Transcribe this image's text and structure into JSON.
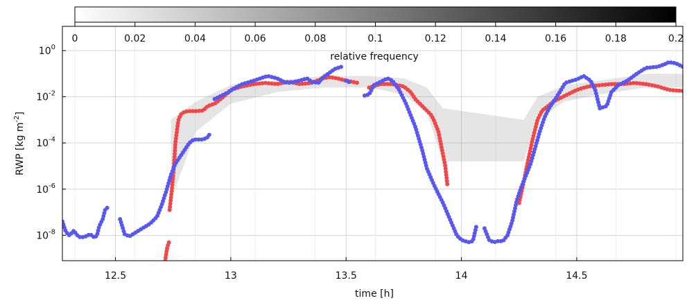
{
  "chart_data": {
    "type": "scatter",
    "xlabel": "time [h]",
    "ylabel": "RWP [kg m",
    "ylabel_sup": "-2",
    "ylabel_close": "]",
    "xlim": [
      12.27,
      14.96
    ],
    "ylim_log10": [
      -9.1,
      1.05
    ],
    "y_scale": "log",
    "grid": true,
    "x_ticks": [
      {
        "value": 12.5,
        "label": "12.5"
      },
      {
        "value": 13.0,
        "label": "13"
      },
      {
        "value": 13.5,
        "label": "13.5"
      },
      {
        "value": 14.0,
        "label": "14"
      },
      {
        "value": 14.5,
        "label": "14.5"
      }
    ],
    "y_ticks": [
      {
        "exp": 0,
        "base": "10",
        "sup": "0"
      },
      {
        "exp": -2,
        "base": "10",
        "sup": "-2"
      },
      {
        "exp": -4,
        "base": "10",
        "sup": "-4"
      },
      {
        "exp": -6,
        "base": "10",
        "sup": "-6"
      },
      {
        "exp": -8,
        "base": "10",
        "sup": "-8"
      }
    ],
    "colorbar": {
      "label": "relative frequency",
      "range": [
        0,
        0.2
      ],
      "colors": [
        "#ffffff",
        "#000000"
      ],
      "ticks": [
        {
          "value": 0,
          "label": "0"
        },
        {
          "value": 0.02,
          "label": "0.02"
        },
        {
          "value": 0.04,
          "label": "0.04"
        },
        {
          "value": 0.06,
          "label": "0.06"
        },
        {
          "value": 0.08,
          "label": "0.08"
        },
        {
          "value": 0.1,
          "label": "0.1"
        },
        {
          "value": 0.12,
          "label": "0.12"
        },
        {
          "value": 0.14,
          "label": "0.14"
        },
        {
          "value": 0.16,
          "label": "0.16"
        },
        {
          "value": 0.18,
          "label": "0.18"
        },
        {
          "value": 0.2,
          "label": "0.2"
        }
      ]
    },
    "frequency_band": {
      "color": "#8a8a8a",
      "x": [
        12.74,
        12.85,
        13.0,
        13.2,
        13.4,
        13.6,
        13.75,
        13.85,
        13.92,
        14.27,
        14.33,
        14.45,
        14.6,
        14.8,
        14.96
      ],
      "log10_low": [
        -6.5,
        -3.5,
        -2.3,
        -1.8,
        -1.6,
        -1.6,
        -1.9,
        -2.7,
        -4.8,
        -4.8,
        -3.0,
        -2.2,
        -1.9,
        -1.6,
        -1.6
      ],
      "log10_high": [
        -3.0,
        -2.2,
        -1.5,
        -1.3,
        -1.1,
        -1.1,
        -1.2,
        -1.6,
        -2.5,
        -3.0,
        -2.0,
        -1.5,
        -1.3,
        -1.0,
        -1.0
      ]
    },
    "series": [
      {
        "color": "#f04848",
        "segments": [
          {
            "x": [
              12.716,
              12.72,
              12.725,
              12.732
            ],
            "log10_y": [
              -9.1,
              -8.8,
              -8.5,
              -8.3
            ]
          },
          {
            "x": [
              12.735,
              12.745,
              12.752,
              12.757,
              12.76,
              12.765,
              12.77,
              12.775,
              12.785,
              12.8,
              12.82,
              12.85,
              12.88,
              12.9,
              12.93,
              12.95,
              12.98,
              13.0,
              13.05,
              13.1,
              13.15,
              13.2,
              13.25,
              13.3,
              13.35,
              13.4,
              13.43,
              13.46,
              13.5,
              13.55
            ],
            "log10_y": [
              -6.9,
              -6.0,
              -5.2,
              -4.5,
              -4.0,
              -3.6,
              -3.2,
              -2.95,
              -2.75,
              -2.65,
              -2.62,
              -2.62,
              -2.6,
              -2.4,
              -2.3,
              -2.15,
              -1.9,
              -1.7,
              -1.55,
              -1.45,
              -1.4,
              -1.45,
              -1.35,
              -1.45,
              -1.4,
              -1.2,
              -1.15,
              -1.2,
              -1.3,
              -1.4
            ]
          },
          {
            "x": [
              13.6,
              13.65,
              13.7,
              13.75,
              13.78,
              13.8,
              13.83,
              13.85,
              13.87,
              13.88,
              13.9,
              13.91,
              13.92,
              13.93,
              13.94
            ],
            "log10_y": [
              -1.6,
              -1.45,
              -1.45,
              -1.55,
              -1.8,
              -2.1,
              -2.4,
              -2.6,
              -2.8,
              -3.0,
              -3.5,
              -4.0,
              -4.5,
              -5.0,
              -5.9
            ]
          },
          {
            "x": [
              14.25,
              14.27,
              14.29,
              14.31,
              14.33,
              14.35,
              14.37,
              14.4,
              14.45,
              14.5,
              14.55,
              14.6,
              14.65,
              14.7,
              14.75,
              14.8,
              14.85,
              14.9,
              14.96
            ],
            "log10_y": [
              -6.6,
              -5.7,
              -4.7,
              -3.8,
              -3.0,
              -2.6,
              -2.45,
              -2.2,
              -1.95,
              -1.7,
              -1.55,
              -1.5,
              -1.45,
              -1.45,
              -1.4,
              -1.45,
              -1.55,
              -1.7,
              -1.75
            ]
          }
        ]
      },
      {
        "color": "#5858f0",
        "segments": [
          {
            "x": [
              12.27,
              12.285,
              12.3,
              12.31,
              12.32,
              12.33,
              12.34,
              12.35,
              12.37,
              12.39,
              12.41,
              12.42,
              12.43,
              12.445,
              12.455,
              12.465
            ],
            "log10_y": [
              -7.4,
              -7.85,
              -8.0,
              -7.9,
              -7.8,
              -7.95,
              -8.05,
              -8.1,
              -8.05,
              -7.95,
              -8.1,
              -8.0,
              -7.6,
              -7.3,
              -6.9,
              -6.8
            ]
          },
          {
            "x": [
              12.52,
              12.54,
              12.56,
              12.6,
              12.65,
              12.68,
              12.7,
              12.72,
              12.74,
              12.76,
              12.78,
              12.8,
              12.82,
              12.84,
              12.86,
              12.88,
              12.9,
              12.91
            ],
            "log10_y": [
              -7.3,
              -7.95,
              -8.05,
              -7.8,
              -7.5,
              -7.2,
              -6.7,
              -6.1,
              -5.4,
              -4.9,
              -4.6,
              -4.3,
              -4.0,
              -3.85,
              -3.85,
              -3.85,
              -3.75,
              -3.6
            ]
          },
          {
            "x": [
              12.93,
              12.96,
              12.99,
              13.02,
              13.05,
              13.1,
              13.13,
              13.16,
              13.2,
              13.23,
              13.25,
              13.3,
              13.33,
              13.35,
              13.38,
              13.4,
              13.43,
              13.45,
              13.48
            ],
            "log10_y": [
              -2.1,
              -1.95,
              -1.8,
              -1.6,
              -1.45,
              -1.3,
              -1.2,
              -1.1,
              -1.2,
              -1.35,
              -1.4,
              -1.3,
              -1.2,
              -1.35,
              -1.4,
              -1.15,
              -0.95,
              -0.8,
              -0.7
            ]
          },
          {
            "x": [
              13.5,
              13.52
            ],
            "log10_y": [
              -1.3,
              -1.4
            ]
          },
          {
            "x": [
              13.58,
              13.6,
              13.62,
              13.65,
              13.68,
              13.7,
              13.73,
              13.76,
              13.8,
              13.83,
              13.85,
              13.88,
              13.9,
              13.92,
              13.95,
              13.98,
              14.0,
              14.03,
              14.05,
              14.065
            ],
            "log10_y": [
              -1.95,
              -1.9,
              -1.5,
              -1.35,
              -1.2,
              -1.3,
              -1.7,
              -2.3,
              -3.3,
              -4.3,
              -5.1,
              -5.8,
              -6.2,
              -6.6,
              -7.3,
              -8.0,
              -8.2,
              -8.3,
              -8.25,
              -7.6
            ]
          },
          {
            "x": [
              14.1,
              14.12,
              14.14,
              14.16,
              14.18,
              14.2,
              14.22,
              14.24,
              14.26,
              14.28,
              14.3,
              14.32,
              14.34,
              14.36,
              14.38,
              14.4,
              14.42,
              14.45,
              14.48,
              14.5,
              14.53,
              14.56,
              14.58,
              14.6,
              14.63,
              14.65,
              14.68,
              14.72,
              14.76,
              14.8,
              14.85,
              14.88,
              14.9,
              14.93,
              14.96
            ],
            "log10_y": [
              -7.7,
              -8.2,
              -8.3,
              -8.25,
              -8.25,
              -8.0,
              -7.4,
              -6.5,
              -5.9,
              -5.4,
              -4.9,
              -4.2,
              -3.5,
              -2.9,
              -2.5,
              -2.2,
              -1.9,
              -1.4,
              -1.3,
              -1.25,
              -1.1,
              -1.3,
              -1.7,
              -2.5,
              -2.4,
              -1.8,
              -1.5,
              -1.3,
              -1.0,
              -0.75,
              -0.7,
              -0.6,
              -0.5,
              -0.55,
              -0.7
            ]
          }
        ]
      }
    ]
  }
}
